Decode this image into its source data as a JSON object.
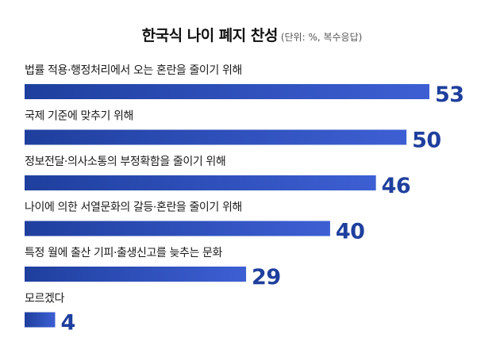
{
  "chart_data": {
    "type": "bar",
    "orientation": "horizontal",
    "title": "한국식 나이 폐지 찬성",
    "subtitle": "(단위: %, 복수응답)",
    "categories": [
      "법률 적용·행정처리에서 오는 혼란을 줄이기 위해",
      "국제 기준에 맞추기 위해",
      "정보전달·의사소통의 부정확함을 줄이기 위해",
      "나이에 의한 서열문화의 갈등·혼란을 줄이기 위해",
      "특정 월에 출산 기피·출생신고를 늦추는 문화",
      "모르겠다"
    ],
    "values": [
      53,
      50,
      46,
      40,
      29,
      4
    ],
    "value_labels": [
      "53",
      "50",
      "46",
      "40",
      "29",
      "4"
    ],
    "xlim": [
      0,
      53
    ],
    "grid": false,
    "legend": "none",
    "colors": {
      "bar_start": "#1f3f9e",
      "bar_end": "#3d5fd3",
      "value_text": "#1f3f9e"
    }
  }
}
